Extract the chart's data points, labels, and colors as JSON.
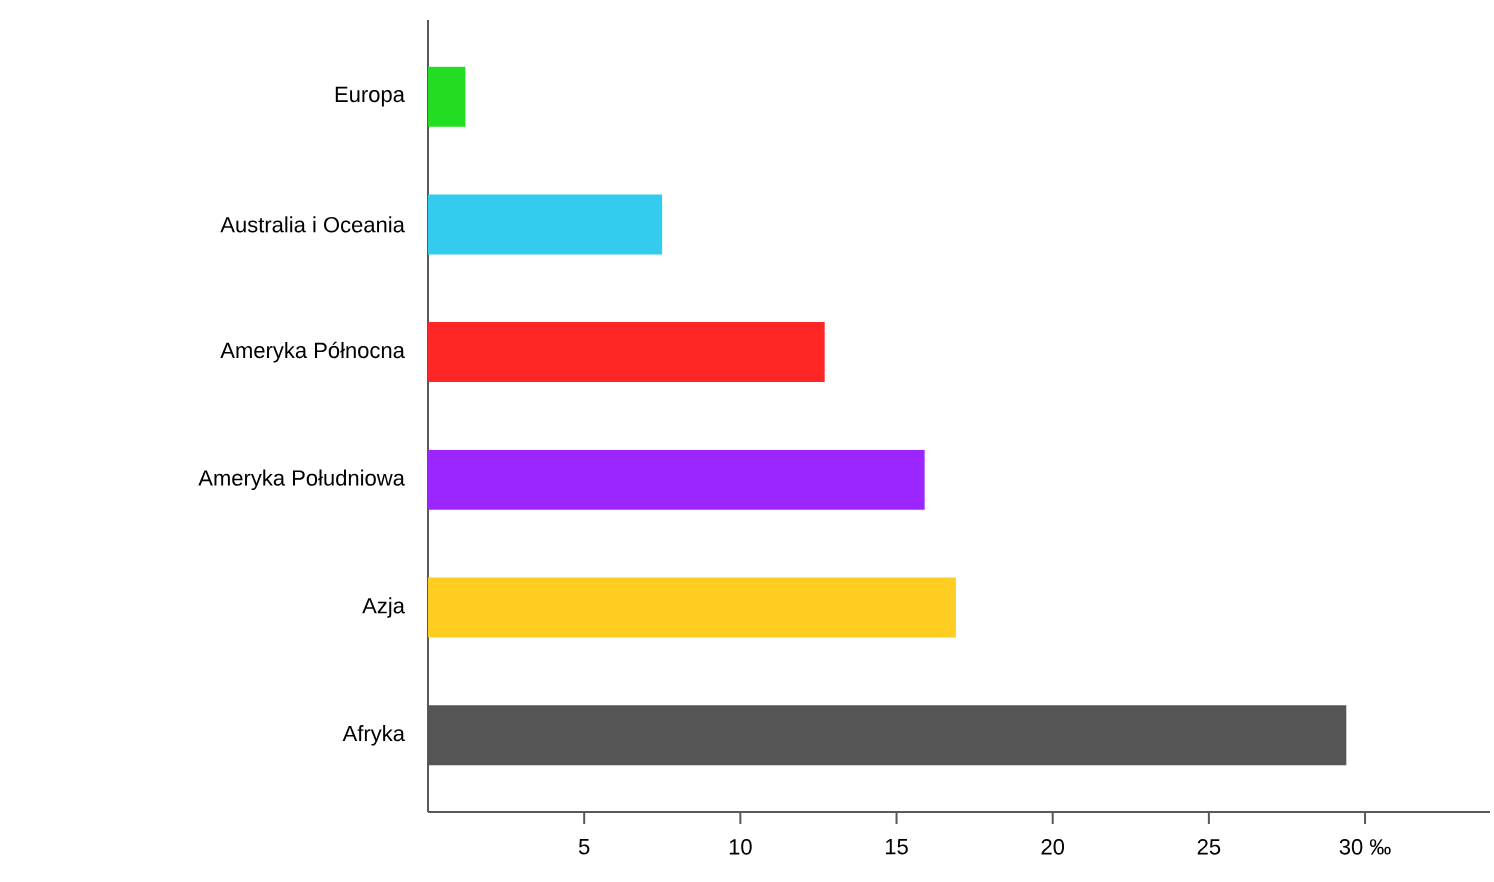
{
  "chart_data": {
    "type": "bar",
    "orientation": "horizontal",
    "categories": [
      "Europa",
      "Australia i Oceania",
      "Ameryka Północna",
      "Ameryka Południowa",
      "Azja",
      "Afryka"
    ],
    "values": [
      1.2,
      7.5,
      12.7,
      15.9,
      16.9,
      29.4
    ],
    "colors": [
      "#22dd22",
      "#33ccee",
      "#ff2626",
      "#9b26ff",
      "#ffcc22",
      "#555555"
    ],
    "xlim": [
      0,
      34
    ],
    "xticks": [
      5,
      10,
      15,
      20,
      25,
      {
        "value": 30,
        "label": "30 ‰"
      }
    ],
    "grid": false
  }
}
